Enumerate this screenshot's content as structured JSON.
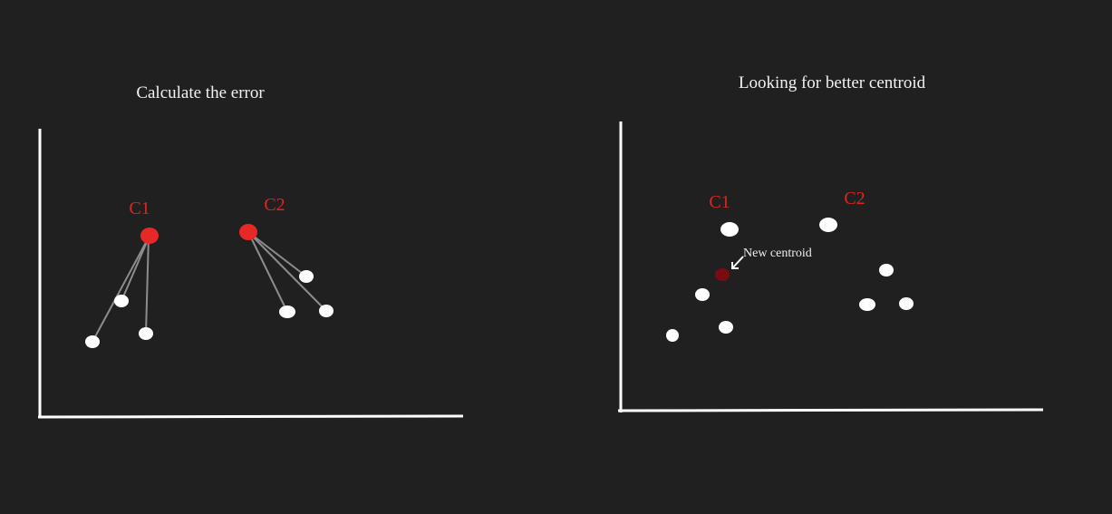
{
  "colors": {
    "background": "#202020",
    "axis": "#ffffff",
    "point": "#ffffff",
    "centroid": "#e82727",
    "new_centroid": "#7a0b12",
    "distance_line": "#8c8c8c",
    "label": "#e02424"
  },
  "left_panel": {
    "title": "Calculate the error",
    "centroid_labels": [
      "C1",
      "C2"
    ]
  },
  "right_panel": {
    "title": "Looking for better centroid",
    "centroid_labels": [
      "C1",
      "C2"
    ],
    "annotation": "New centroid"
  }
}
